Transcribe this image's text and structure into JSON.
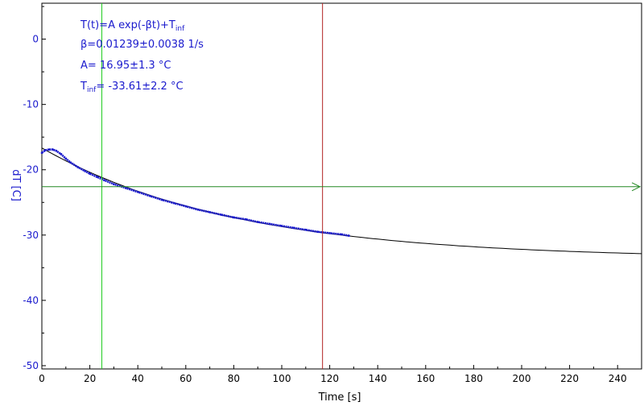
{
  "chart_data": {
    "type": "scatter",
    "xlabel": "Time [s]",
    "ylabel": "dT [C]",
    "xlim": [
      0,
      250
    ],
    "ylim": [
      -50.5,
      5.5
    ],
    "xticks": [
      0,
      20,
      40,
      60,
      80,
      100,
      120,
      140,
      160,
      180,
      200,
      220,
      240
    ],
    "yticks": [
      0,
      -10,
      -20,
      -30,
      -40,
      -50
    ],
    "fit": {
      "equation": "T(t)=A exp(-βt)+T",
      "equation_sub": "inf",
      "beta_text": "β=0.01239±0.0038 1/s",
      "A_text": "A= 16.95±1.3 °C",
      "tinf_label": "T",
      "tinf_sub": "inf",
      "tinf_value": "= -33.61±2.2 °C",
      "A": 16.95,
      "beta": 0.01239,
      "T_inf": -33.61
    },
    "measured_points": [
      [
        0,
        -17.4
      ],
      [
        1.5,
        -17.0
      ],
      [
        3,
        -16.9
      ],
      [
        4.5,
        -16.9
      ],
      [
        6,
        -17.1
      ],
      [
        8,
        -17.6
      ],
      [
        10,
        -18.3
      ],
      [
        12,
        -18.9
      ],
      [
        15,
        -19.6
      ],
      [
        18,
        -20.2
      ],
      [
        20,
        -20.6
      ],
      [
        23,
        -21.1
      ],
      [
        26,
        -21.6
      ],
      [
        30,
        -22.2
      ],
      [
        35,
        -22.8
      ],
      [
        40,
        -23.4
      ],
      [
        45,
        -24.0
      ],
      [
        50,
        -24.6
      ],
      [
        55,
        -25.1
      ],
      [
        60,
        -25.6
      ],
      [
        65,
        -26.1
      ],
      [
        70,
        -26.5
      ],
      [
        75,
        -26.9
      ],
      [
        80,
        -27.3
      ],
      [
        85,
        -27.6
      ],
      [
        90,
        -28.0
      ],
      [
        95,
        -28.3
      ],
      [
        100,
        -28.6
      ],
      [
        105,
        -28.9
      ],
      [
        110,
        -29.2
      ],
      [
        115,
        -29.5
      ],
      [
        120,
        -29.7
      ],
      [
        125,
        -29.9
      ],
      [
        128,
        -30.1
      ]
    ],
    "cursors": {
      "green_vertical_x": 25,
      "red_vertical_x": 117,
      "horizontal_y": -22.6
    },
    "colors": {
      "data": "#1a1acd",
      "fit": "#000000",
      "text": "#1a1acd",
      "green_cursor": "#22cc22",
      "horizontal_cursor": "#228822",
      "red_cursor": "#b22222",
      "axes": "#000000"
    },
    "grid": false
  }
}
